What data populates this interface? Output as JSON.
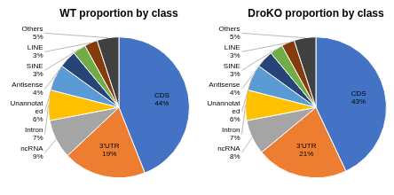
{
  "chart_data": [
    {
      "type": "pie",
      "title": "WT proportion by class",
      "categories": [
        "CDS",
        "3'UTR",
        "ncRNA",
        "Intron",
        "Unannotat\ned",
        "Antisense",
        "SINE",
        "LINE",
        "Others"
      ],
      "values": [
        44,
        19,
        9,
        7,
        6,
        4,
        3,
        3,
        5
      ],
      "value_labels": [
        "44%",
        "19%",
        "9%",
        "7%",
        "6%",
        "4%",
        "3%",
        "3%",
        "5%"
      ],
      "colors": [
        "#4472C4",
        "#ED7D31",
        "#A5A5A5",
        "#FFC000",
        "#5B9BD5",
        "#264478",
        "#70AD47",
        "#843C0C",
        "#404040"
      ],
      "data_labels": true
    },
    {
      "type": "pie",
      "title": "DroKO proportion by class",
      "categories": [
        "CDS",
        "3'UTR",
        "ncRNA",
        "Intron",
        "Unannotat\ned",
        "Antisense",
        "SINE",
        "LINE",
        "Others"
      ],
      "values": [
        43,
        21,
        8,
        7,
        6,
        4,
        3,
        3,
        5
      ],
      "value_labels": [
        "43%",
        "21%",
        "8%",
        "7%",
        "6%",
        "4%",
        "3%",
        "3%",
        "5%"
      ],
      "colors": [
        "#4472C4",
        "#ED7D31",
        "#A5A5A5",
        "#FFC000",
        "#5B9BD5",
        "#264478",
        "#70AD47",
        "#843C0C",
        "#404040"
      ],
      "data_labels": true
    }
  ]
}
